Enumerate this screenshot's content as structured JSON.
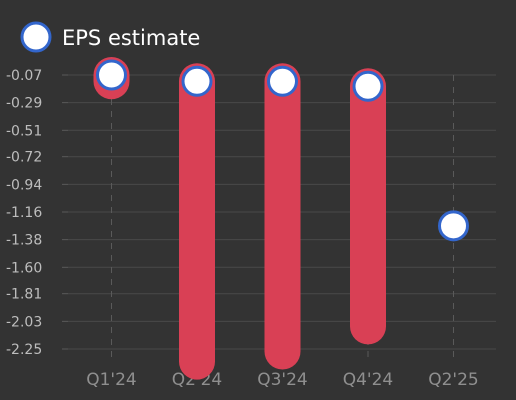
{
  "chart_data": {
    "type": "bar",
    "categories": [
      "Q1'24",
      "Q2'24",
      "Q3'24",
      "Q4'24",
      "Q2'25"
    ],
    "series": [
      {
        "name": "",
        "kind": "range-bar",
        "color": "#d94055",
        "values": [
          -0.12,
          -2.35,
          -2.27,
          -2.07,
          null
        ]
      },
      {
        "name": "EPS estimate",
        "kind": "marker",
        "color": "#ffffff",
        "edge_color": "#3366cc",
        "values": [
          -0.07,
          -0.12,
          -0.12,
          -0.16,
          -1.27
        ]
      }
    ],
    "y_ticks": [
      "-0.07",
      "-0.29",
      "-0.51",
      "-0.72",
      "-0.94",
      "-1.16",
      "-1.38",
      "-1.60",
      "-1.81",
      "-2.03",
      "-2.25"
    ],
    "ylim": [
      -2.25,
      -0.07
    ],
    "grid": true,
    "legend": {
      "position": "top-left",
      "label": "EPS estimate"
    },
    "title": "",
    "xlabel": "",
    "ylabel": ""
  }
}
